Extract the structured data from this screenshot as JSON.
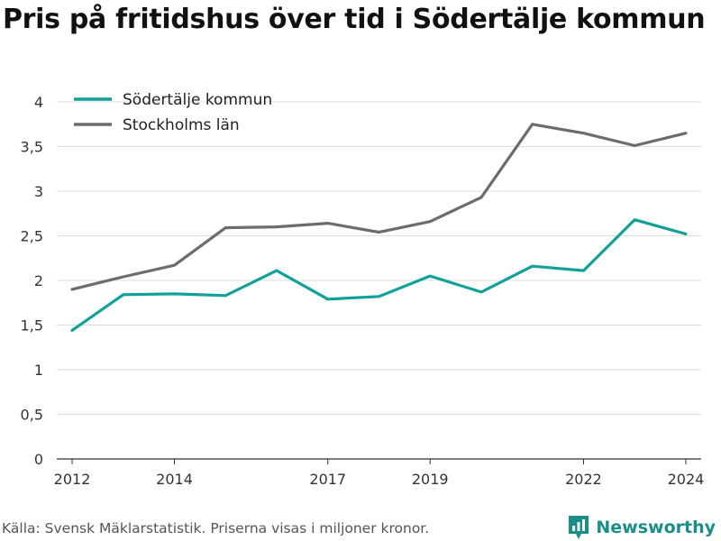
{
  "header": {
    "title": "Pris på fritidshus över tid i Södertälje kommun"
  },
  "footer": {
    "source": "Källa: Svensk Mäklarstatistik. Priserna visas i miljoner kronor.",
    "brand": "Newsworthy"
  },
  "colors": {
    "sodertalje": "#12a19a",
    "stockholm": "#6b6b72",
    "grid": "#dddddd",
    "axis": "#333333"
  },
  "chart_data": {
    "type": "line",
    "title": "Pris på fritidshus över tid i Södertälje kommun",
    "xlabel": "",
    "ylabel": "",
    "x": [
      2012,
      2013,
      2014,
      2015,
      2016,
      2017,
      2018,
      2019,
      2020,
      2021,
      2022,
      2023,
      2024
    ],
    "xticks": [
      2012,
      2014,
      2017,
      2019,
      2022,
      2024
    ],
    "xlim": [
      2011.7,
      2024.3
    ],
    "ylim": [
      0,
      4
    ],
    "yticks": [
      0,
      0.5,
      1,
      1.5,
      2,
      2.5,
      3,
      3.5,
      4
    ],
    "ytick_labels": [
      "0",
      "0,5",
      "1",
      "1,5",
      "2",
      "2,5",
      "3",
      "3,5",
      "4"
    ],
    "grid": true,
    "legend_position": "top-left",
    "series": [
      {
        "name": "Södertälje kommun",
        "color": "#12a19a",
        "values": [
          1.44,
          1.84,
          1.85,
          1.83,
          2.11,
          1.79,
          1.82,
          2.05,
          1.87,
          2.16,
          2.11,
          2.68,
          2.52
        ]
      },
      {
        "name": "Stockholms län",
        "color": "#6b6b72",
        "values": [
          1.9,
          2.04,
          2.17,
          2.59,
          2.6,
          2.64,
          2.54,
          2.66,
          2.93,
          3.75,
          3.65,
          3.51,
          3.65
        ]
      }
    ]
  }
}
